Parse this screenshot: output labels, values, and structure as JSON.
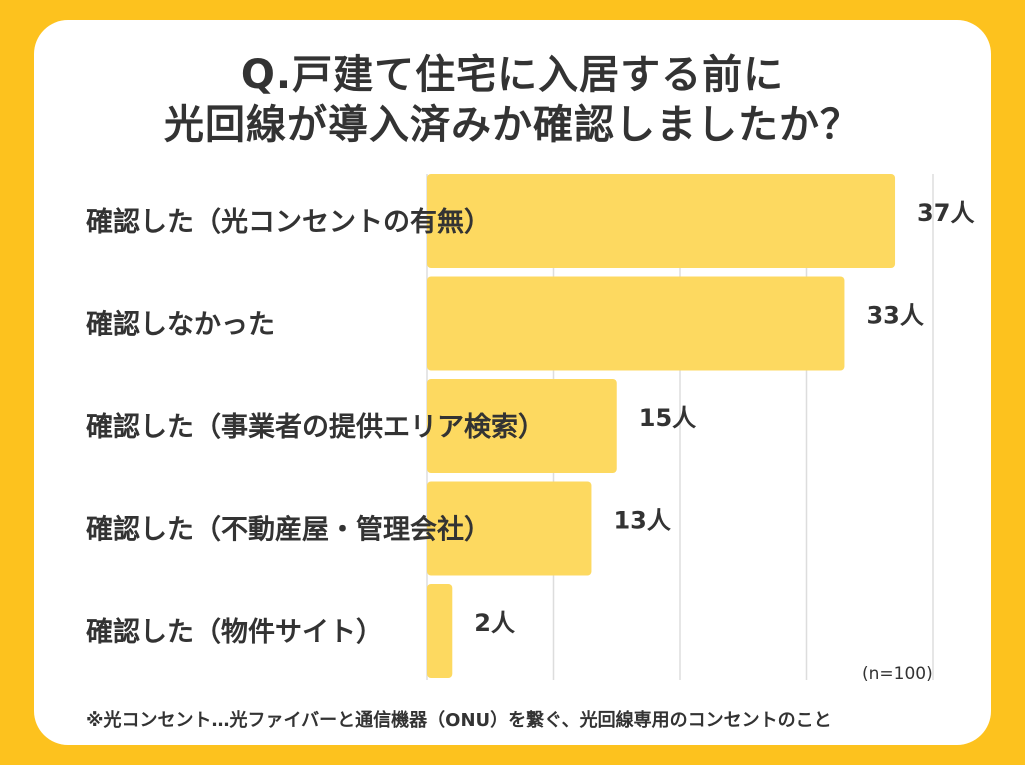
{
  "title_lines": [
    "Q.戸建て住宅に入居する前に",
    "光回線が導入済みか確認しましたか？"
  ],
  "sample_note": "(n=100)",
  "footnote": "※光コンセント…光ファイバーと通信機器（ONU）を繋ぐ、光回線専用のコンセントのこと",
  "colors": {
    "background": "#FDC21E",
    "card": "#FFFFFF",
    "bar": "#FDD960",
    "text": "#333333",
    "grid": "#DDDDDD"
  },
  "chart_data": {
    "type": "bar",
    "orientation": "horizontal",
    "categories": [
      "確認した（光コンセントの有無）",
      "確認しなかった",
      "確認した（事業者の提供エリア検索）",
      "確認した（不動産屋・管理会社）",
      "確認した（物件サイト）"
    ],
    "values": [
      37,
      33,
      15,
      13,
      2
    ],
    "value_labels": [
      "37人",
      "33人",
      "15人",
      "13人",
      "2人"
    ],
    "unit": "人",
    "xlim": [
      0,
      40
    ],
    "grid": true
  }
}
